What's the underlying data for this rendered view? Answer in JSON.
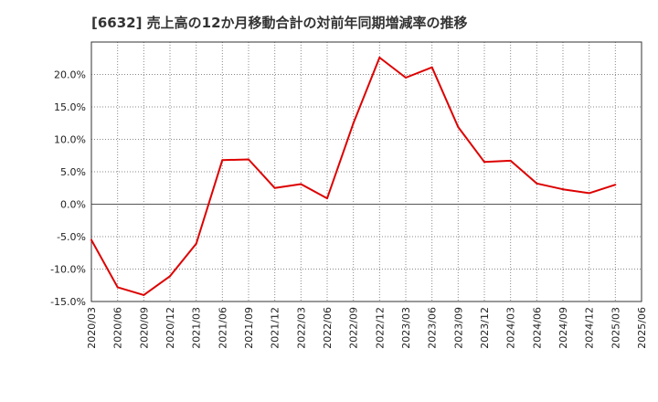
{
  "chart_data": {
    "type": "line",
    "title": "[6632]  売上高の12か月移動合計の対前年同期増減率の推移",
    "xlabel": "",
    "ylabel": "",
    "ylim": [
      -15,
      25
    ],
    "yticks": [
      -15,
      -10,
      -5,
      0,
      5,
      10,
      15,
      20
    ],
    "ytick_labels": [
      "-15.0%",
      "-10.0%",
      "-5.0%",
      "0.0%",
      "5.0%",
      "10.0%",
      "15.0%",
      "20.0%"
    ],
    "categories": [
      "2020/03",
      "2020/06",
      "2020/09",
      "2020/12",
      "2021/03",
      "2021/06",
      "2021/09",
      "2021/12",
      "2022/03",
      "2022/06",
      "2022/09",
      "2022/12",
      "2023/03",
      "2023/06",
      "2023/09",
      "2023/12",
      "2024/03",
      "2024/06",
      "2024/09",
      "2024/12",
      "2025/03",
      "2025/06"
    ],
    "series": [
      {
        "name": "増減率",
        "color": "#dd0000",
        "values": [
          -5.5,
          -12.8,
          -14.0,
          -11.1,
          -6.1,
          6.8,
          6.9,
          2.5,
          3.1,
          0.9,
          12.5,
          22.6,
          19.5,
          21.1,
          11.9,
          6.5,
          6.7,
          3.2,
          2.3,
          1.7,
          3.0,
          null
        ]
      }
    ],
    "grid": true,
    "legend": "none"
  }
}
